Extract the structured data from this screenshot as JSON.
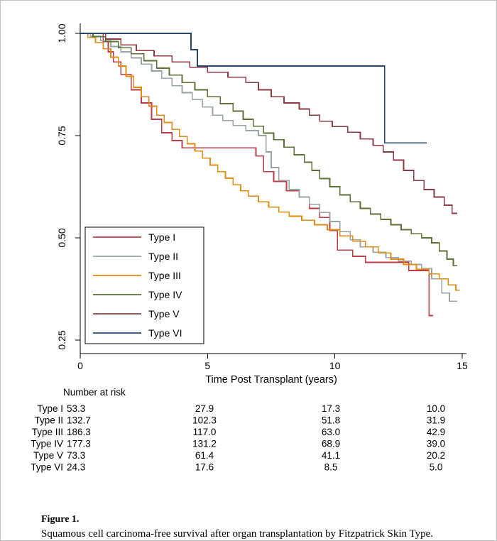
{
  "chart_data": {
    "type": "line",
    "subtype": "kaplan-meier-step",
    "title": "",
    "xlabel": "Time Post Transplant (years)",
    "ylabel": "",
    "xlim": [
      0,
      15
    ],
    "ylim": [
      0.25,
      1.0
    ],
    "xticks": [
      0,
      5,
      10,
      15
    ],
    "xtick_labels": [
      "0",
      "5",
      "10",
      "15"
    ],
    "yticks": [
      0.25,
      0.5,
      0.75,
      1.0
    ],
    "ytick_labels": [
      "0.25",
      "0.50",
      "0.75",
      "1.00"
    ],
    "grid": false,
    "legend_position": "inside-left-middle",
    "series": [
      {
        "name": "Type I",
        "color": "#BE3B4A",
        "steps": [
          [
            0,
            1.0
          ],
          [
            0.9,
            0.98
          ],
          [
            1.1,
            0.955
          ],
          [
            1.3,
            0.93
          ],
          [
            1.6,
            0.9
          ],
          [
            2.0,
            0.862
          ],
          [
            2.4,
            0.83
          ],
          [
            2.8,
            0.79
          ],
          [
            3.2,
            0.757
          ],
          [
            3.6,
            0.738
          ],
          [
            4.0,
            0.72
          ],
          [
            6.9,
            0.7
          ],
          [
            7.2,
            0.662
          ],
          [
            7.6,
            0.638
          ],
          [
            8.1,
            0.615
          ],
          [
            8.6,
            0.6
          ],
          [
            9.0,
            0.572
          ],
          [
            9.4,
            0.55
          ],
          [
            9.8,
            0.518
          ],
          [
            10.1,
            0.47
          ],
          [
            10.7,
            0.455
          ],
          [
            11.2,
            0.44
          ],
          [
            12.9,
            0.42
          ],
          [
            13.7,
            0.31
          ],
          [
            13.85,
            0.31
          ]
        ]
      },
      {
        "name": "Type II",
        "color": "#97A5A0",
        "steps": [
          [
            0,
            1.0
          ],
          [
            0.4,
            0.993
          ],
          [
            0.8,
            0.982
          ],
          [
            1.2,
            0.968
          ],
          [
            1.6,
            0.955
          ],
          [
            2.0,
            0.94
          ],
          [
            2.4,
            0.925
          ],
          [
            2.8,
            0.908
          ],
          [
            3.2,
            0.89
          ],
          [
            3.6,
            0.872
          ],
          [
            4.0,
            0.855
          ],
          [
            4.4,
            0.838
          ],
          [
            4.8,
            0.82
          ],
          [
            5.2,
            0.8
          ],
          [
            5.6,
            0.787
          ],
          [
            6.0,
            0.775
          ],
          [
            6.5,
            0.762
          ],
          [
            7.0,
            0.75
          ],
          [
            7.3,
            0.71
          ],
          [
            7.5,
            0.672
          ],
          [
            7.8,
            0.64
          ],
          [
            8.2,
            0.618
          ],
          [
            8.6,
            0.6
          ],
          [
            9.0,
            0.582
          ],
          [
            9.4,
            0.562
          ],
          [
            9.8,
            0.54
          ],
          [
            10.2,
            0.515
          ],
          [
            10.6,
            0.495
          ],
          [
            11.0,
            0.478
          ],
          [
            11.5,
            0.465
          ],
          [
            12.0,
            0.452
          ],
          [
            12.5,
            0.443
          ],
          [
            13.0,
            0.435
          ],
          [
            13.4,
            0.425
          ],
          [
            13.8,
            0.4
          ],
          [
            14.2,
            0.365
          ],
          [
            14.5,
            0.345
          ],
          [
            14.8,
            0.345
          ]
        ]
      },
      {
        "name": "Type III",
        "color": "#E08B13",
        "steps": [
          [
            0,
            1.0
          ],
          [
            0.3,
            0.99
          ],
          [
            0.6,
            0.978
          ],
          [
            0.9,
            0.962
          ],
          [
            1.2,
            0.942
          ],
          [
            1.5,
            0.92
          ],
          [
            1.8,
            0.895
          ],
          [
            2.1,
            0.868
          ],
          [
            2.4,
            0.845
          ],
          [
            2.7,
            0.822
          ],
          [
            3.0,
            0.8
          ],
          [
            3.3,
            0.782
          ],
          [
            3.6,
            0.765
          ],
          [
            3.9,
            0.748
          ],
          [
            4.2,
            0.73
          ],
          [
            4.5,
            0.712
          ],
          [
            4.8,
            0.695
          ],
          [
            5.1,
            0.678
          ],
          [
            5.4,
            0.662
          ],
          [
            5.7,
            0.646
          ],
          [
            6.0,
            0.63
          ],
          [
            6.3,
            0.615
          ],
          [
            6.6,
            0.602
          ],
          [
            7.0,
            0.588
          ],
          [
            7.4,
            0.575
          ],
          [
            7.8,
            0.563
          ],
          [
            8.2,
            0.553
          ],
          [
            8.7,
            0.543
          ],
          [
            9.2,
            0.532
          ],
          [
            9.7,
            0.52
          ],
          [
            10.2,
            0.505
          ],
          [
            10.7,
            0.492
          ],
          [
            11.2,
            0.478
          ],
          [
            11.7,
            0.463
          ],
          [
            12.2,
            0.448
          ],
          [
            12.7,
            0.435
          ],
          [
            13.2,
            0.423
          ],
          [
            13.7,
            0.412
          ],
          [
            14.1,
            0.4
          ],
          [
            14.45,
            0.385
          ],
          [
            14.75,
            0.372
          ],
          [
            14.9,
            0.372
          ]
        ]
      },
      {
        "name": "Type IV",
        "color": "#5C7037",
        "steps": [
          [
            0,
            1.0
          ],
          [
            0.5,
            0.992
          ],
          [
            1.0,
            0.98
          ],
          [
            1.5,
            0.965
          ],
          [
            2.0,
            0.95
          ],
          [
            2.5,
            0.933
          ],
          [
            3.0,
            0.915
          ],
          [
            3.5,
            0.898
          ],
          [
            4.0,
            0.88
          ],
          [
            4.5,
            0.862
          ],
          [
            5.0,
            0.845
          ],
          [
            5.5,
            0.828
          ],
          [
            6.0,
            0.81
          ],
          [
            6.4,
            0.79
          ],
          [
            6.8,
            0.773
          ],
          [
            7.2,
            0.756
          ],
          [
            7.6,
            0.74
          ],
          [
            8.0,
            0.722
          ],
          [
            8.4,
            0.703
          ],
          [
            8.8,
            0.685
          ],
          [
            9.1,
            0.665
          ],
          [
            9.4,
            0.645
          ],
          [
            9.8,
            0.625
          ],
          [
            10.2,
            0.605
          ],
          [
            10.6,
            0.588
          ],
          [
            11.0,
            0.572
          ],
          [
            11.4,
            0.558
          ],
          [
            11.8,
            0.545
          ],
          [
            12.2,
            0.532
          ],
          [
            12.6,
            0.52
          ],
          [
            13.0,
            0.51
          ],
          [
            13.4,
            0.5
          ],
          [
            13.8,
            0.488
          ],
          [
            14.1,
            0.468
          ],
          [
            14.4,
            0.448
          ],
          [
            14.65,
            0.432
          ],
          [
            14.8,
            0.432
          ]
        ]
      },
      {
        "name": "Type V",
        "color": "#8C3B45",
        "steps": [
          [
            0,
            1.0
          ],
          [
            1.0,
            0.986
          ],
          [
            1.6,
            0.972
          ],
          [
            2.2,
            0.958
          ],
          [
            2.9,
            0.945
          ],
          [
            3.6,
            0.93
          ],
          [
            4.3,
            0.917
          ],
          [
            5.0,
            0.905
          ],
          [
            5.8,
            0.893
          ],
          [
            6.5,
            0.88
          ],
          [
            7.0,
            0.862
          ],
          [
            7.5,
            0.845
          ],
          [
            8.0,
            0.83
          ],
          [
            8.6,
            0.815
          ],
          [
            9.0,
            0.8
          ],
          [
            9.4,
            0.785
          ],
          [
            9.9,
            0.772
          ],
          [
            10.5,
            0.758
          ],
          [
            11.0,
            0.742
          ],
          [
            11.5,
            0.726
          ],
          [
            11.9,
            0.71
          ],
          [
            12.3,
            0.69
          ],
          [
            12.7,
            0.665
          ],
          [
            13.1,
            0.64
          ],
          [
            13.5,
            0.618
          ],
          [
            13.9,
            0.6
          ],
          [
            14.3,
            0.58
          ],
          [
            14.6,
            0.56
          ],
          [
            14.8,
            0.56
          ]
        ]
      },
      {
        "name": "Type VI",
        "color": "#27476B",
        "steps": [
          [
            0,
            1.0
          ],
          [
            4.35,
            0.96
          ],
          [
            4.6,
            0.92
          ],
          [
            11.95,
            0.732
          ],
          [
            13.6,
            0.732
          ]
        ]
      }
    ],
    "risk_table": {
      "title": "Number at risk",
      "rows": [
        {
          "label": "Type I",
          "values": [
            "53.3",
            "27.9",
            "17.3",
            "10.0"
          ]
        },
        {
          "label": "Type II",
          "values": [
            "132.7",
            "102.3",
            "51.8",
            "31.9"
          ]
        },
        {
          "label": "Type III",
          "values": [
            "186.3",
            "117.0",
            "63.0",
            "42.9"
          ]
        },
        {
          "label": "Type IV",
          "values": [
            "177.3",
            "131.2",
            "68.9",
            "39.0"
          ]
        },
        {
          "label": "Type V",
          "values": [
            "73.3",
            "61.4",
            "41.1",
            "20.2"
          ]
        },
        {
          "label": "Type VI",
          "values": [
            "24.3",
            "17.6",
            "8.5",
            "5.0"
          ]
        }
      ]
    }
  },
  "caption": {
    "label": "Figure 1.",
    "text": "Squamous cell carcinoma-free survival after organ transplantation by Fitzpatrick Skin Type."
  }
}
